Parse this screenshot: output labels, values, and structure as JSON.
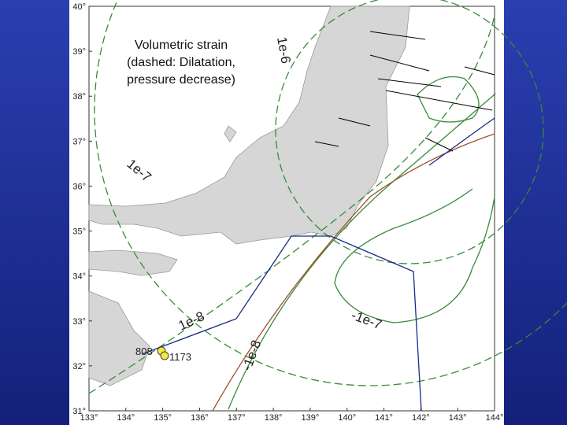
{
  "map": {
    "title_lines": [
      "Volumetric strain",
      "(dashed: Dilatation,",
      "pressure decrease)"
    ],
    "lonlim": [
      133,
      144
    ],
    "latlim": [
      31,
      40
    ],
    "lon_ticks": [
      {
        "value": 133,
        "label": "133°"
      },
      {
        "value": 134,
        "label": "134°"
      },
      {
        "value": 135,
        "label": "135°"
      },
      {
        "value": 136,
        "label": "136°"
      },
      {
        "value": 137,
        "label": "137°"
      },
      {
        "value": 138,
        "label": "138°"
      },
      {
        "value": 139,
        "label": "139°"
      },
      {
        "value": 140,
        "label": "140°"
      },
      {
        "value": 141,
        "label": "141°"
      },
      {
        "value": 142,
        "label": "142°"
      },
      {
        "value": 143,
        "label": "143°"
      },
      {
        "value": 144,
        "label": "144°"
      }
    ],
    "lat_ticks": [
      {
        "value": 31,
        "label": "31°"
      },
      {
        "value": 32,
        "label": "32°"
      },
      {
        "value": 33,
        "label": "33°"
      },
      {
        "value": 34,
        "label": "34°"
      },
      {
        "value": 35,
        "label": "35°"
      },
      {
        "value": 36,
        "label": "36°"
      },
      {
        "value": 37,
        "label": "37°"
      },
      {
        "value": 38,
        "label": "38°"
      },
      {
        "value": 39,
        "label": "39°"
      },
      {
        "value": 40,
        "label": "40°"
      }
    ],
    "contour_labels": [
      "1e-6",
      "1e-7",
      "1e-8",
      "-1e-8",
      "-1e-7"
    ],
    "sites": [
      "808",
      "1173"
    ]
  }
}
